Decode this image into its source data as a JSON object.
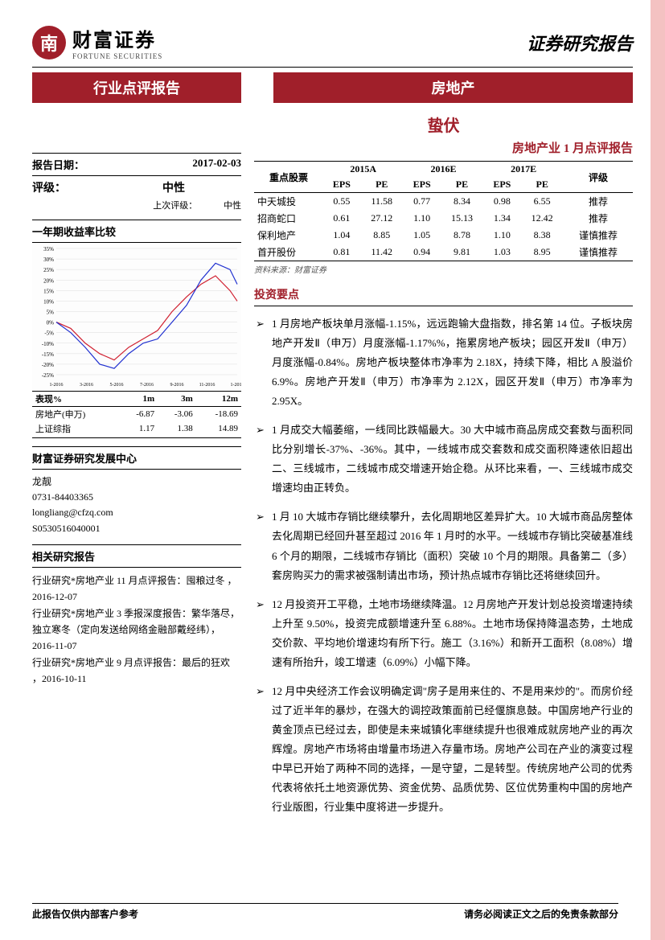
{
  "header": {
    "logo_char": "南",
    "logo_cn": "财富证券",
    "logo_en": "FORTUNE SECURITIES",
    "report_type": "证券研究报告"
  },
  "banner": {
    "left": "行业点评报告",
    "right": "房地产"
  },
  "title": {
    "main": "蛰伏",
    "sub": "房地产业 1 月点评报告"
  },
  "meta": {
    "date_label": "报告日期：",
    "date_value": "2017-02-03",
    "rating_label": "评级：",
    "rating_value": "中性",
    "prev_rating_label": "上次评级：",
    "prev_rating_value": "中性"
  },
  "chart": {
    "title": "一年期收益率比较",
    "y_ticks": [
      "35%",
      "30%",
      "25%",
      "20%",
      "15%",
      "10%",
      "5%",
      "0%",
      "-5%",
      "-10%",
      "-15%",
      "-20%",
      "-25%"
    ],
    "x_ticks": [
      "1-2016",
      "3-2016",
      "5-2016",
      "7-2016",
      "9-2016",
      "11-2016",
      "1-2017"
    ],
    "series": [
      {
        "name": "red",
        "color": "#d02030",
        "points": [
          [
            0,
            0
          ],
          [
            8,
            -3
          ],
          [
            16,
            -10
          ],
          [
            24,
            -15
          ],
          [
            32,
            -18
          ],
          [
            40,
            -12
          ],
          [
            48,
            -8
          ],
          [
            56,
            -4
          ],
          [
            64,
            5
          ],
          [
            72,
            12
          ],
          [
            80,
            18
          ],
          [
            88,
            22
          ],
          [
            96,
            15
          ],
          [
            100,
            10
          ]
        ]
      },
      {
        "name": "blue",
        "color": "#2030d0",
        "points": [
          [
            0,
            0
          ],
          [
            8,
            -5
          ],
          [
            16,
            -12
          ],
          [
            24,
            -20
          ],
          [
            32,
            -22
          ],
          [
            40,
            -15
          ],
          [
            48,
            -10
          ],
          [
            56,
            -8
          ],
          [
            64,
            0
          ],
          [
            72,
            8
          ],
          [
            80,
            20
          ],
          [
            88,
            28
          ],
          [
            96,
            25
          ],
          [
            100,
            18
          ]
        ]
      }
    ],
    "y_min": -25,
    "y_max": 35
  },
  "perf": {
    "header": [
      "表现%",
      "1m",
      "3m",
      "12m"
    ],
    "rows": [
      [
        "房地产(申万)",
        "-6.87",
        "-3.06",
        "-18.69"
      ],
      [
        "上证综指",
        "1.17",
        "1.38",
        "14.89"
      ]
    ]
  },
  "contact": {
    "dept": "财富证券研究发展中心",
    "name": "龙靓",
    "phone": "0731-84403365",
    "email": "longliang@cfzq.com",
    "cert": "S0530516040001"
  },
  "related": {
    "title": "相关研究报告",
    "items": [
      "行业研究*房地产业 11 月点评报告：囤粮过冬 ，2016-12-07",
      "行业研究*房地产业 3 季报深度报告：繁华落尽，独立寒冬（定向发送给网络金融部戴经纬），2016-11-07",
      "行业研究*房地产业 9 月点评报告：最后的狂欢 ，2016-10-11"
    ]
  },
  "stocks": {
    "headers": {
      "name": "重点股票",
      "y2015": "2015A",
      "y2016": "2016E",
      "y2017": "2017E",
      "rating": "评级",
      "eps": "EPS",
      "pe": "PE"
    },
    "rows": [
      {
        "name": "中天城投",
        "eps15": "0.55",
        "pe15": "11.58",
        "eps16": "0.77",
        "pe16": "8.34",
        "eps17": "0.98",
        "pe17": "6.55",
        "rating": "推荐"
      },
      {
        "name": "招商蛇口",
        "eps15": "0.61",
        "pe15": "27.12",
        "eps16": "1.10",
        "pe16": "15.13",
        "eps17": "1.34",
        "pe17": "12.42",
        "rating": "推荐"
      },
      {
        "name": "保利地产",
        "eps15": "1.04",
        "pe15": "8.85",
        "eps16": "1.05",
        "pe16": "8.78",
        "eps17": "1.10",
        "pe17": "8.38",
        "rating": "谨慎推荐"
      },
      {
        "name": "首开股份",
        "eps15": "0.81",
        "pe15": "11.42",
        "eps16": "0.94",
        "pe16": "9.81",
        "eps17": "1.03",
        "pe17": "8.95",
        "rating": "谨慎推荐"
      }
    ],
    "source": "资料来源：财富证券"
  },
  "investment": {
    "title": "投资要点",
    "bullets": [
      "1 月房地产板块单月涨幅-1.15%，远远跑输大盘指数，排名第 14 位。子板块房地产开发Ⅱ（申万）月度涨幅-1.17%%，拖累房地产板块；园区开发Ⅱ（申万）月度涨幅-0.84%。房地产板块整体市净率为 2.18X，持续下降，相比 A 股溢价 6.9%。房地产开发Ⅱ（申万）市净率为 2.12X，园区开发Ⅱ（申万）市净率为 2.95X。",
      "1 月成交大幅萎缩，一线同比跌幅最大。30 大中城市商品房成交套数与面积同比分别增长-37%、-36%。其中，一线城市成交套数和成交面积降速依旧超出二、三线城市，二线城市成交增速开始企稳。从环比来看，一、三线城市成交增速均由正转负。",
      "1 月 10 大城市存销比继续攀升，去化周期地区差异扩大。10 大城市商品房整体去化周期已经回升甚至超过 2016 年 1 月时的水平。一线城市存销比突破基准线 6 个月的期限，二线城市存销比（面积）突破 10 个月的期限。具备第二（多）套房购买力的需求被强制请出市场，预计热点城市存销比还将继续回升。",
      "12 月投资开工平稳，土地市场继续降温。12 月房地产开发计划总投资增速持续上升至 9.50%，投资完成额增速升至 6.88%。土地市场保持降温态势，土地成交价款、平均地价增速均有所下行。施工（3.16%）和新开工面积（8.08%）增速有所抬升，竣工增速（6.09%）小幅下降。",
      "12 月中央经济工作会议明确定调\"房子是用来住的、不是用来炒的\"。而房价经过了近半年的暴炒，在强大的调控政策面前已经偃旗息鼓。中国房地产行业的黄金顶点已经过去，即使是未来城镇化率继续提升也很难成就房地产业的再次辉煌。房地产市场将由增量市场进入存量市场。房地产公司在产业的演变过程中早已开始了两种不同的选择，一是守望，二是转型。传统房地产公司的优秀代表将依托土地资源优势、资金优势、品质优势、区位优势重构中国的房地产行业版图，行业集中度将进一步提升。"
    ]
  },
  "footer": {
    "left": "此报告仅供内部客户参考",
    "right": "请务必阅读正文之后的免责条款部分"
  }
}
